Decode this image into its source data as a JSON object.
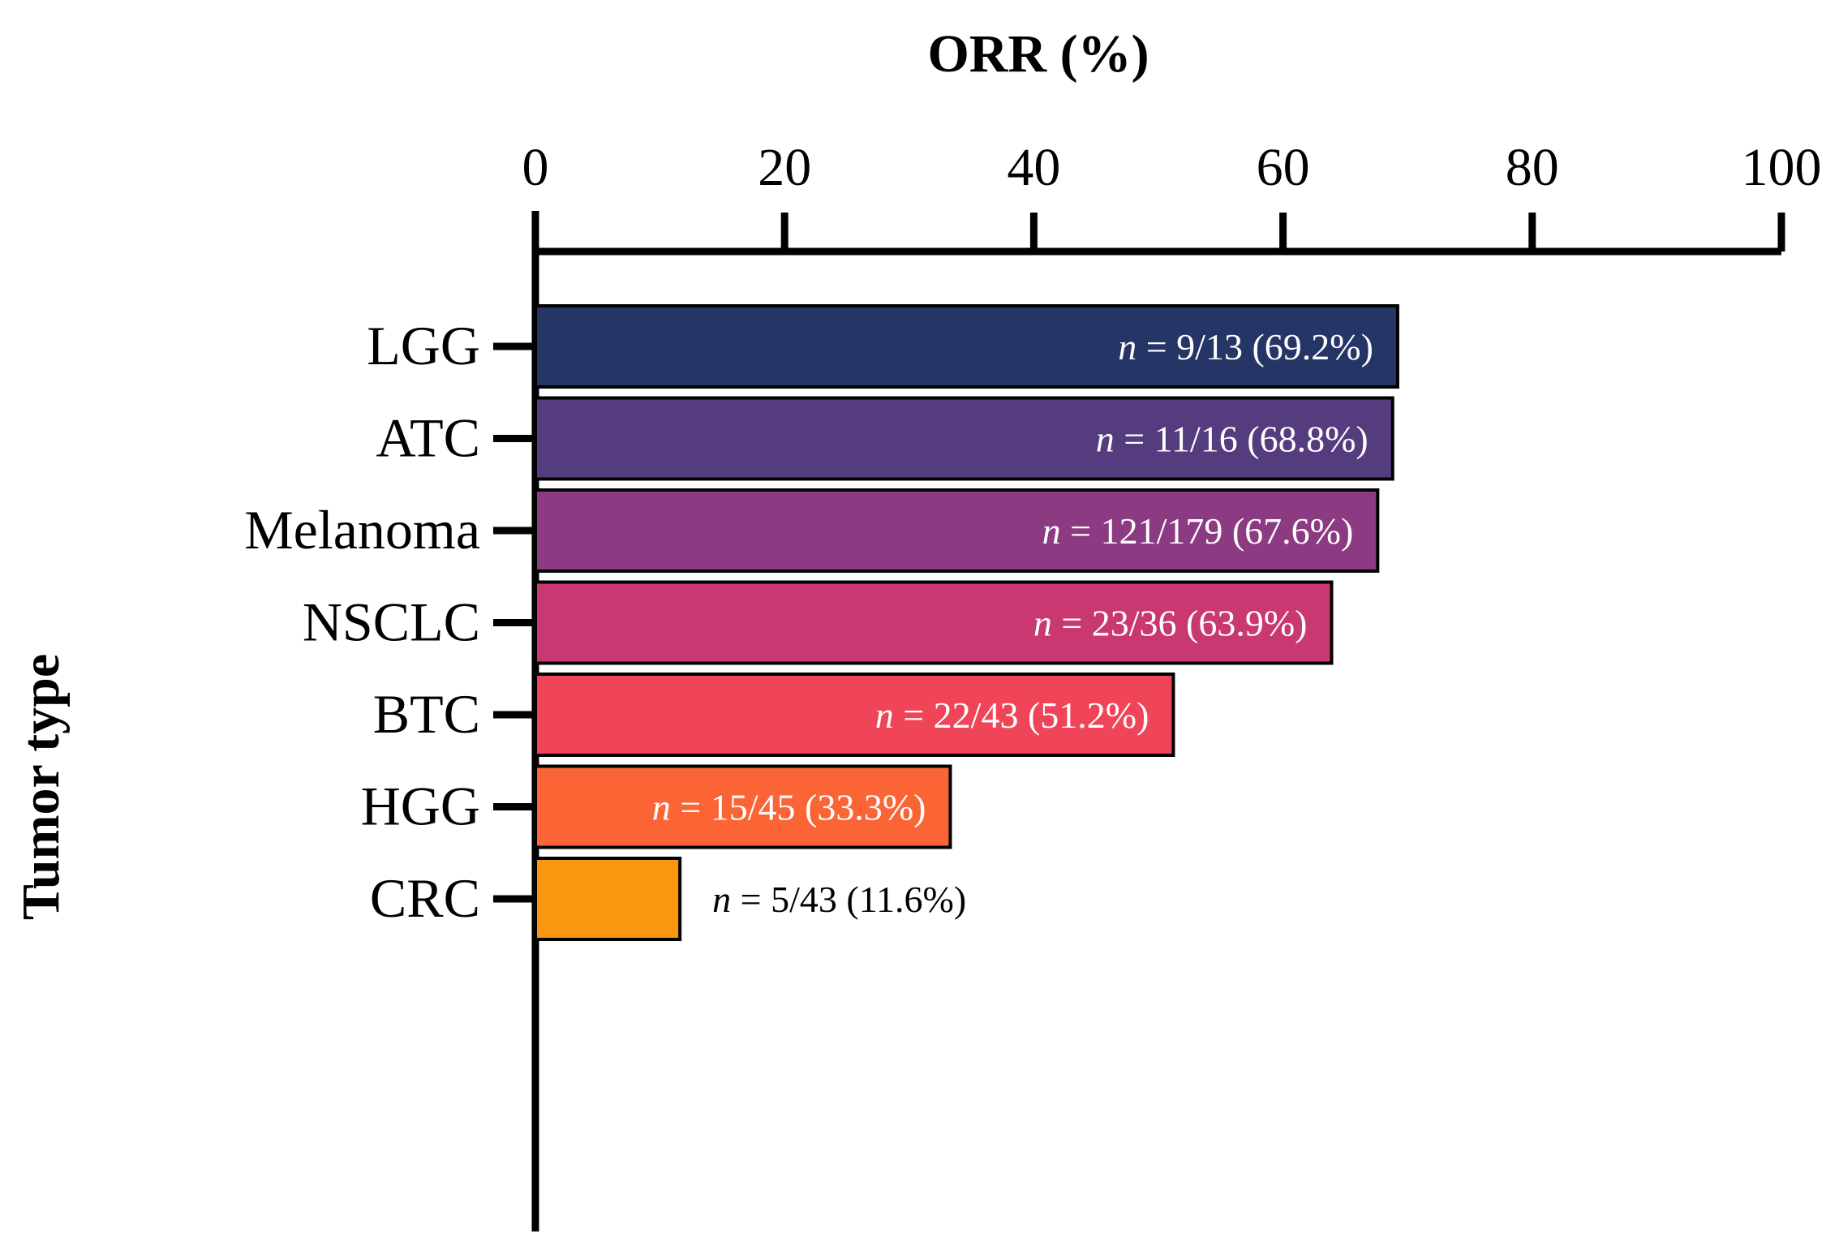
{
  "chart_data": {
    "type": "bar",
    "orientation": "horizontal",
    "xlabel": "ORR (%)",
    "ylabel": "Tumor type",
    "xlim": [
      0,
      100
    ],
    "xticks": [
      "0",
      "20",
      "40",
      "60",
      "80",
      "100"
    ],
    "xaxis_position": "top",
    "categories": [
      "LGG",
      "ATC",
      "Melanoma",
      "NSCLC",
      "BTC",
      "HGG",
      "CRC"
    ],
    "values": [
      69.2,
      68.8,
      67.6,
      63.9,
      51.2,
      33.3,
      11.6
    ],
    "labels": [
      {
        "n": "n",
        "text": " = 9/13 (69.2%)"
      },
      {
        "n": "n",
        "text": " = 11/16 (68.8%)"
      },
      {
        "n": "n",
        "text": " = 121/179 (67.6%)"
      },
      {
        "n": "n",
        "text": " = 23/36 (63.9%)"
      },
      {
        "n": "n",
        "text": " = 22/43 (51.2%)"
      },
      {
        "n": "n",
        "text": " = 15/45 (33.3%)"
      },
      {
        "n": "n",
        "text": " = 5/43 (11.6%)"
      }
    ],
    "colors": [
      "#253566",
      "#553c7e",
      "#8c3a82",
      "#c93870",
      "#f04458",
      "#fb6535",
      "#fa9710"
    ],
    "label_colors": [
      "#ffffff",
      "#ffffff",
      "#ffffff",
      "#ffffff",
      "#ffffff",
      "#ffffff",
      "#000000"
    ],
    "grid": false
  }
}
